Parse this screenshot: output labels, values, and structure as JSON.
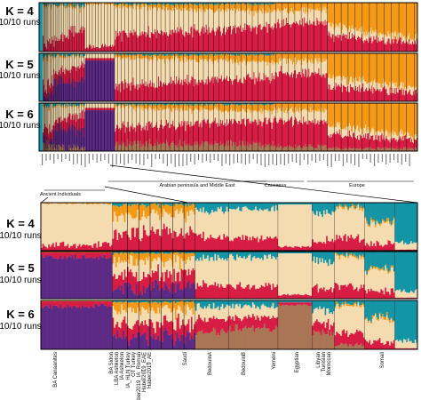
{
  "colors": {
    "beige": "#f4dbb0",
    "red": "#d81d45",
    "orange": "#f59a16",
    "teal": "#1495a6",
    "purple": "#5c2b86",
    "brown": "#a97555",
    "frame": "#000000"
  },
  "panels": {
    "top": [
      {
        "k_label": "K = 4",
        "runs_label": "10/10 runs"
      },
      {
        "k_label": "K = 5",
        "runs_label": "10/10 runs"
      },
      {
        "k_label": "K = 6",
        "runs_label": "10/10 runs"
      }
    ],
    "zoom": [
      {
        "k_label": "K = 4",
        "runs_label": "10/10 runs"
      },
      {
        "k_label": "K = 5",
        "runs_label": "10/10 runs"
      },
      {
        "k_label": "K = 6",
        "runs_label": "10/10 runs"
      }
    ]
  },
  "top_groups": {
    "ancient": "Ancient Individuals",
    "arabian": "Arabian peninsula and Middle East",
    "caucasus": "Caucasus",
    "europe": "Europe"
  },
  "zoom_populations": [
    "BA Canaanites",
    "BA Sidon",
    "LBA Ashkelon",
    "IA Ashkelon",
    "IA_HLN Turkey",
    "OT Turkey",
    "Haber2019_IA_Roman",
    "Haber2019_EAE",
    "Haber2019_AE",
    "Saudi",
    "BedouinA",
    "BedouinB",
    "Yemeni",
    "Egyptian",
    "Libyan",
    "Tunisian",
    "Moroccan",
    "Somali"
  ],
  "chart_data": [
    {
      "type": "stacked-bar",
      "title": "",
      "panel": "top",
      "components": [
        "teal",
        "orange",
        "beige",
        "red",
        "purple",
        "brown"
      ],
      "rows": [
        "K = 4",
        "K = 5",
        "K = 6"
      ],
      "runs": "10/10 runs",
      "group_labels": [
        "Ancient Individuals",
        "Arabian peninsula and Middle East",
        "Caucasus",
        "Europe"
      ]
    },
    {
      "type": "stacked-bar",
      "title": "",
      "panel": "zoom",
      "components": [
        "teal",
        "orange",
        "beige",
        "red",
        "purple",
        "brown"
      ],
      "rows": [
        "K = 4",
        "K = 5",
        "K = 6"
      ],
      "runs": "10/10 runs",
      "population_labels": [
        "BA Canaanites",
        "BA Sidon",
        "LBA Ashkelon",
        "IA Ashkelon",
        "IA_HLN Turkey",
        "OT Turkey",
        "Haber2019_IA_Roman",
        "Haber2019_EAE",
        "Haber2019_AE",
        "Saudi",
        "BedouinA",
        "BedouinB",
        "Yemeni",
        "Egyptian",
        "Libyan",
        "Tunisian",
        "Moroccan",
        "Somali"
      ]
    }
  ]
}
